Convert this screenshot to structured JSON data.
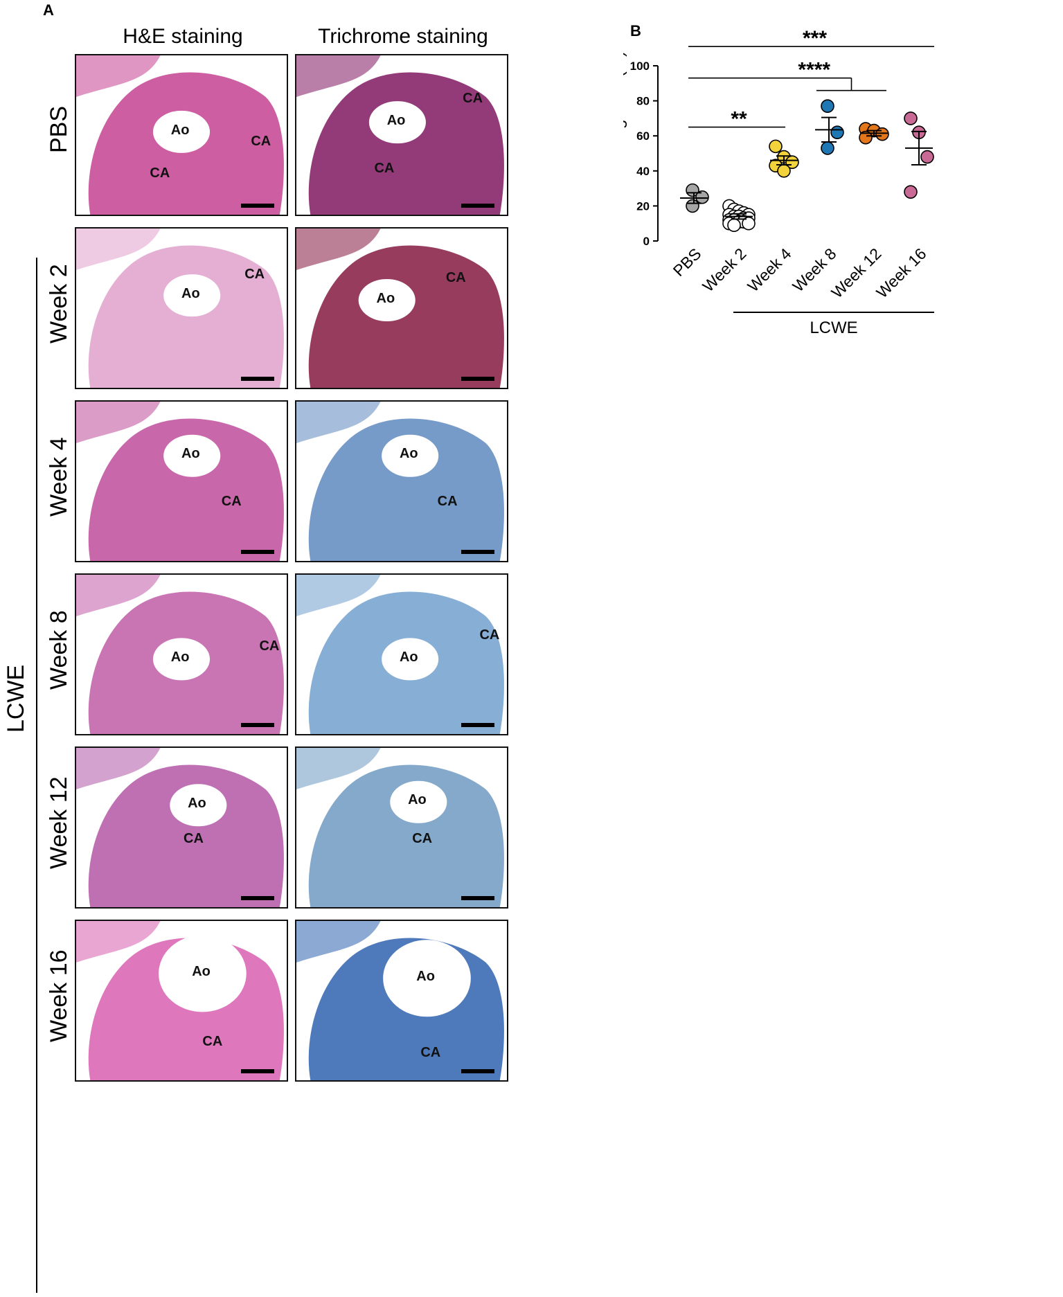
{
  "panel_a": {
    "letter": "A",
    "columns": [
      "H&E staining",
      "Trichrome staining"
    ],
    "group_label": "LCWE",
    "rows": [
      {
        "label": "PBS",
        "he": {
          "bg": "#c9509a",
          "labels": [
            "Ao",
            "CA",
            "CA"
          ]
        },
        "tri": {
          "bg": "#8a2a6e",
          "labels": [
            "Ao",
            "CA",
            "CA"
          ]
        }
      },
      {
        "label": "Week 2",
        "he": {
          "bg": "#e3a8d0",
          "labels": [
            "Ao",
            "CA"
          ]
        },
        "tri": {
          "bg": "#8e2b4f",
          "labels": [
            "Ao",
            "CA"
          ]
        }
      },
      {
        "label": "Week 4",
        "he": {
          "bg": "#c45aa4",
          "labels": [
            "Ao",
            "CA"
          ]
        },
        "tri": {
          "bg": "#6b93c3",
          "labels": [
            "Ao",
            "CA"
          ]
        }
      },
      {
        "label": "Week 8",
        "he": {
          "bg": "#c468ad",
          "labels": [
            "Ao",
            "CA"
          ]
        },
        "tri": {
          "bg": "#7da7d0",
          "labels": [
            "Ao",
            "CA"
          ]
        }
      },
      {
        "label": "Week 12",
        "he": {
          "bg": "#b864ad",
          "labels": [
            "Ao",
            "CA"
          ]
        },
        "tri": {
          "bg": "#7aa2c7",
          "labels": [
            "Ao",
            "CA"
          ]
        }
      },
      {
        "label": "Week 16",
        "he": {
          "bg": "#dc6bb6",
          "labels": [
            "Ao",
            "CA"
          ]
        },
        "tri": {
          "bg": "#3f6fb5",
          "labels": [
            "Ao",
            "CA"
          ]
        }
      }
    ]
  },
  "chart_data": {
    "panel_letter": "B",
    "type": "scatter",
    "ylabel": "Trichrome staining area (%)",
    "ylim": [
      0,
      100
    ],
    "yticks": [
      0,
      20,
      40,
      60,
      80,
      100
    ],
    "categories": [
      "PBS",
      "Week 2",
      "Week 4",
      "Week 8",
      "Week 12",
      "Week 16"
    ],
    "group_label": "LCWE",
    "group_members": [
      "Week 2",
      "Week 4",
      "Week 8",
      "Week 12",
      "Week 16"
    ],
    "series": [
      {
        "category": "PBS",
        "color": "#a6a6a6",
        "points": [
          29,
          25,
          20
        ],
        "mean": 24.5,
        "sem": 3
      },
      {
        "category": "Week 2",
        "color": "#ffffff",
        "points": [
          20,
          18,
          17,
          16,
          15,
          15,
          14,
          14,
          13,
          13,
          12,
          12,
          11,
          11,
          10,
          10,
          9
        ],
        "mean": 14,
        "sem": 1.5
      },
      {
        "category": "Week 4",
        "color": "#f2d33b",
        "points": [
          54,
          48,
          45,
          43,
          40
        ],
        "mean": 46,
        "sem": 2.5
      },
      {
        "category": "Week 8",
        "color": "#1f78b4",
        "points": [
          77,
          62,
          53
        ],
        "mean": 63.5,
        "sem": 7
      },
      {
        "category": "Week 12",
        "color": "#e4761b",
        "points": [
          64,
          63,
          61,
          59
        ],
        "mean": 61.5,
        "sem": 1.5
      },
      {
        "category": "Week 16",
        "color": "#c96a96",
        "points": [
          70,
          62,
          48,
          28
        ],
        "mean": 53,
        "sem": 9.5
      }
    ],
    "significance": [
      {
        "from": "PBS",
        "to": "Week 4",
        "label": "**",
        "y": 65
      },
      {
        "from": "PBS",
        "to": "Week 8-12",
        "label": "****",
        "y": 93
      },
      {
        "from": "PBS",
        "to": "Week 16",
        "label": "***",
        "y": 111
      }
    ]
  }
}
